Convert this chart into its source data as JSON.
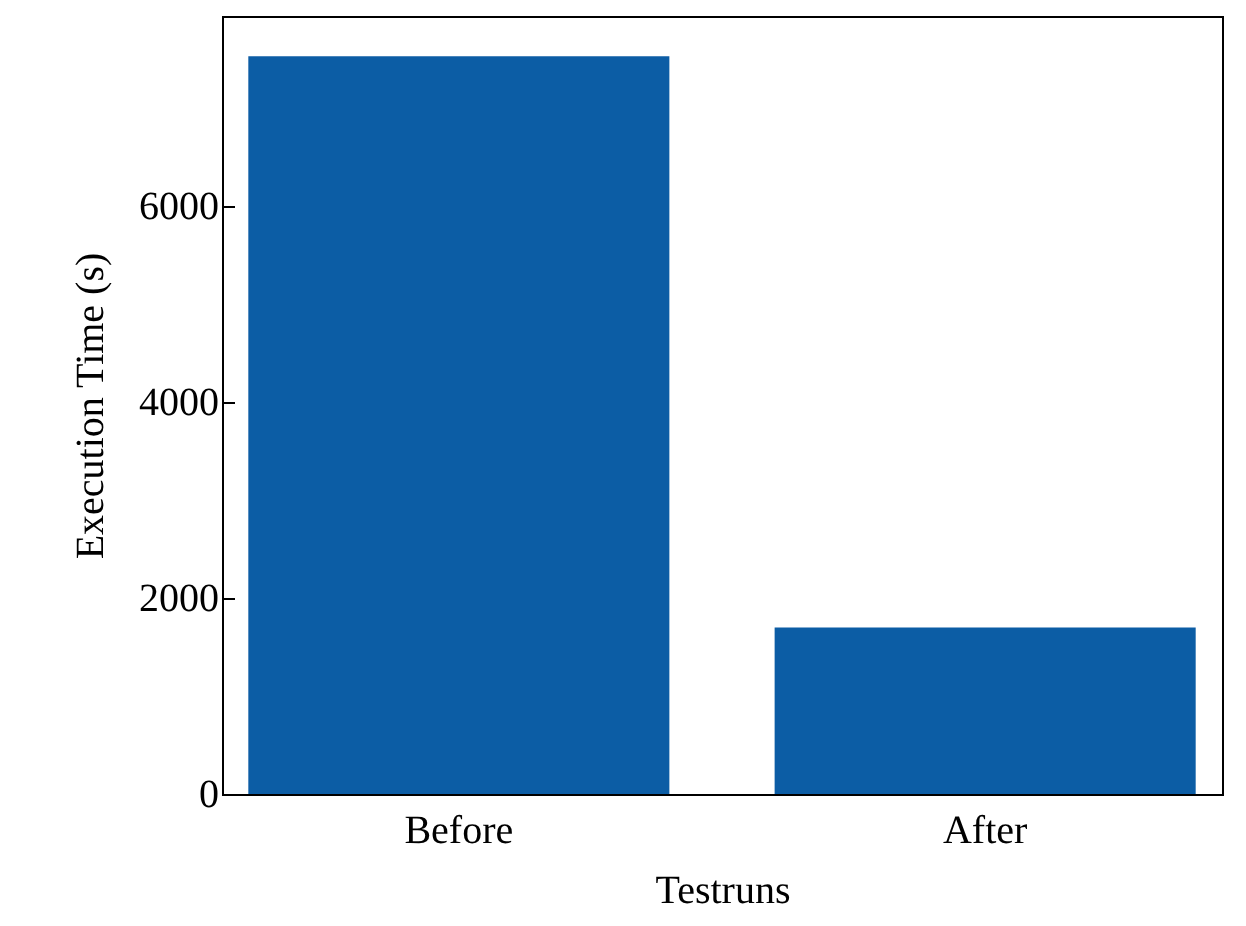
{
  "chart_data": {
    "type": "bar",
    "xlabel": "Testruns",
    "ylabel": "Execution Time (s)",
    "categories": [
      "Before",
      "After"
    ],
    "values": [
      7530,
      1700
    ],
    "color": "#0c5da5",
    "ylim": [
      0,
      7940
    ],
    "yticks": [
      0,
      2000,
      4000,
      6000
    ],
    "grid": false
  }
}
